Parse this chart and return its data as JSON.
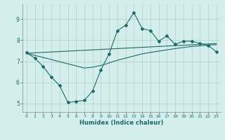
{
  "xlabel": "Humidex (Indice chaleur)",
  "bg_color": "#d4eeeb",
  "grid_color": "#b8d8d4",
  "line_color": "#1a6b6b",
  "x_data": [
    0,
    1,
    2,
    3,
    4,
    5,
    6,
    7,
    8,
    9,
    10,
    11,
    12,
    13,
    14,
    15,
    16,
    17,
    18,
    19,
    20,
    21,
    22,
    23
  ],
  "y_main": [
    7.4,
    7.15,
    6.75,
    6.25,
    5.85,
    5.05,
    5.1,
    5.15,
    5.6,
    6.6,
    7.35,
    8.45,
    8.7,
    9.3,
    8.55,
    8.45,
    7.95,
    8.2,
    7.8,
    7.95,
    7.95,
    7.85,
    7.75,
    7.45
  ],
  "y_upper": [
    7.38,
    7.4,
    7.42,
    7.44,
    7.46,
    7.48,
    7.5,
    7.52,
    7.54,
    7.56,
    7.58,
    7.6,
    7.62,
    7.64,
    7.66,
    7.68,
    7.7,
    7.72,
    7.74,
    7.76,
    7.78,
    7.8,
    7.82,
    7.84
  ],
  "y_lower": [
    7.38,
    7.28,
    7.18,
    7.08,
    6.98,
    6.88,
    6.78,
    6.68,
    6.72,
    6.8,
    6.92,
    7.05,
    7.15,
    7.25,
    7.35,
    7.42,
    7.48,
    7.54,
    7.6,
    7.65,
    7.7,
    7.73,
    7.76,
    7.79
  ],
  "ylim": [
    4.6,
    9.7
  ],
  "xlim": [
    -0.5,
    23.5
  ],
  "yticks": [
    5,
    6,
    7,
    8,
    9
  ],
  "xticks": [
    0,
    1,
    2,
    3,
    4,
    5,
    6,
    7,
    8,
    9,
    10,
    11,
    12,
    13,
    14,
    15,
    16,
    17,
    18,
    19,
    20,
    21,
    22,
    23
  ],
  "xtick_labels": [
    "0",
    "1",
    "2",
    "3",
    "4",
    "5",
    "6",
    "7",
    "8",
    "9",
    "10",
    "11",
    "12",
    "13",
    "14",
    "15",
    "16",
    "17",
    "18",
    "19",
    "20",
    "21",
    "22",
    "23"
  ]
}
